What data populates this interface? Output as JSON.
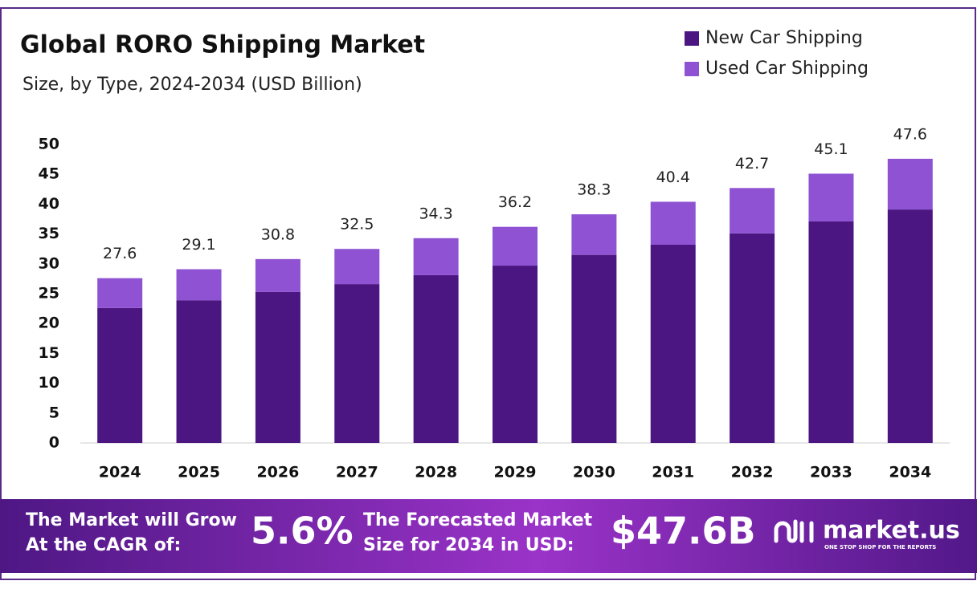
{
  "chart_data": {
    "type": "stacked_bar",
    "title": "Global RORO Shipping Market",
    "subtitle": "Size, by Type, 2024-2034 (USD Billion)",
    "categories": [
      "2024",
      "2025",
      "2026",
      "2027",
      "2028",
      "2029",
      "2030",
      "2031",
      "2032",
      "2033",
      "2034"
    ],
    "series": [
      {
        "name": "New Car Shipping",
        "color": "#4b1582",
        "values": [
          22.6,
          23.9,
          25.3,
          26.6,
          28.1,
          29.7,
          31.5,
          33.2,
          35.1,
          37.1,
          39.1
        ]
      },
      {
        "name": "Used Car Shipping",
        "color": "#8e52d3",
        "values": [
          5.0,
          5.2,
          5.5,
          5.9,
          6.2,
          6.5,
          6.8,
          7.2,
          7.6,
          8.0,
          8.5
        ]
      }
    ],
    "totals": [
      27.6,
      29.1,
      30.8,
      32.5,
      34.3,
      36.2,
      38.3,
      40.4,
      42.7,
      45.1,
      47.6
    ],
    "ylim": [
      0,
      50
    ],
    "yticks": [
      0,
      5,
      10,
      15,
      20,
      25,
      30,
      35,
      40,
      45,
      50
    ],
    "grid": false
  },
  "footer": {
    "cagr_text": [
      "The Market will Grow",
      "At the CAGR of:"
    ],
    "cagr": "5.6%",
    "forecast_text": [
      "The Forecasted Market",
      "Size for 2034 in USD:"
    ],
    "forecast": "$47.6B",
    "brand": "market.us",
    "tagline": "ONE STOP SHOP FOR THE REPORTS"
  }
}
